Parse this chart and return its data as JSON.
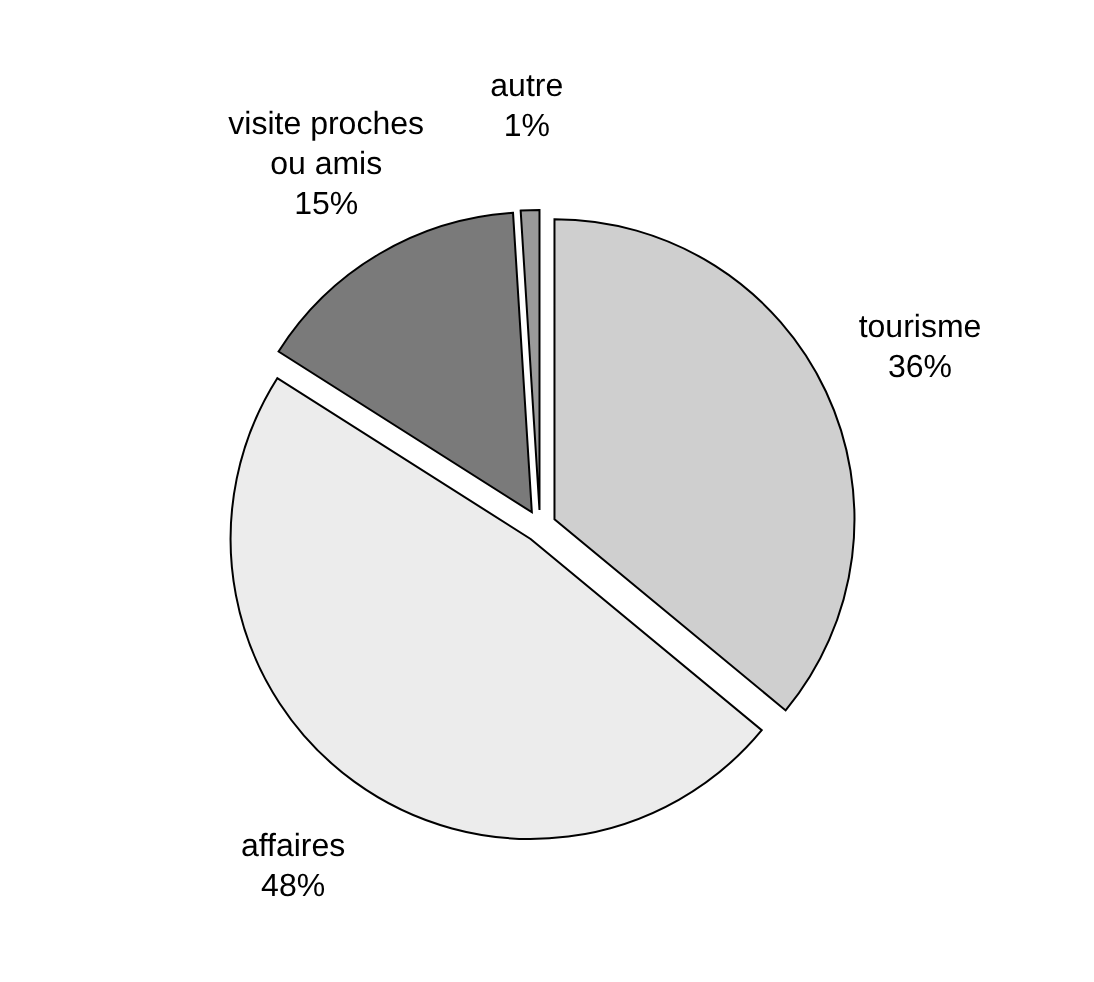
{
  "chart_data": {
    "type": "pie",
    "categories": [
      "tourisme",
      "affaires",
      "visite proches ou amis",
      "autre"
    ],
    "values": [
      36,
      48,
      15,
      1
    ],
    "value_labels": [
      "36%",
      "48%",
      "15%",
      "1%"
    ],
    "colors": [
      "#cfcfcf",
      "#ececec",
      "#7a7a7a",
      "#9a9a9a"
    ]
  }
}
